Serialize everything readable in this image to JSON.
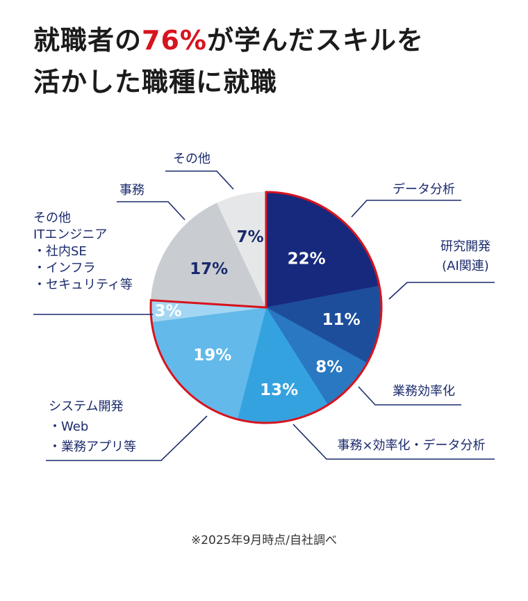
{
  "headline": {
    "line1_before": "就職者の",
    "line1_accent": "76%",
    "line1_after": "が学んだスキルを",
    "line2": "活かした職種に就職"
  },
  "footnote": "※2025年9月時点/自社調べ",
  "colors": {
    "accent_red": "#d7141e",
    "label_navy": "#1a2a6c",
    "leader_line": "#1a2a6c"
  },
  "chart_data": {
    "type": "pie",
    "start": "12 o'clock, clockwise",
    "highlight_outline": "#d7141e",
    "highlight_total": "76%",
    "slices": [
      {
        "label": "データ分析",
        "value": 22,
        "pct": "22%",
        "color": "#17297d",
        "highlight": true
      },
      {
        "label": "研究開発\n(AI関連)",
        "value": 11,
        "pct": "11%",
        "color": "#1d4e9c",
        "highlight": true
      },
      {
        "label": "業務効率化",
        "value": 8,
        "pct": "8%",
        "color": "#2a78c2",
        "highlight": true
      },
      {
        "label": "事務×効率化・データ分析",
        "value": 13,
        "pct": "13%",
        "color": "#35a2e0",
        "highlight": true
      },
      {
        "label": "システム開発\n・Web\n・業務アプリ等",
        "value": 19,
        "pct": "19%",
        "color": "#62b9ea",
        "highlight": true
      },
      {
        "label": "その他\nITエンジニア\n・社内SE\n・インフラ\n・セキュリティ等",
        "value": 3,
        "pct": "3%",
        "color": "#a3d6f3",
        "highlight": true
      },
      {
        "label": "事務",
        "value": 17,
        "pct": "17%",
        "color": "#c9cdd2",
        "highlight": false
      },
      {
        "label": "その他",
        "value": 7,
        "pct": "7%",
        "color": "#e6e7e9",
        "highlight": false
      }
    ]
  }
}
